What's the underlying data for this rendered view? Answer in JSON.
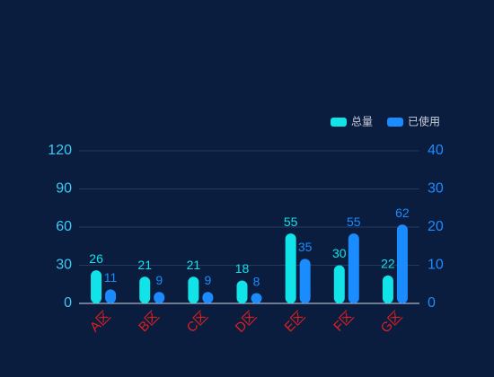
{
  "chart_data": {
    "type": "bar",
    "categories": [
      "A区",
      "B区",
      "C区",
      "D区",
      "E区",
      "F区",
      "G区"
    ],
    "series": [
      {
        "name": "总量",
        "color": "#11e3e8",
        "values": [
          26,
          21,
          21,
          18,
          55,
          30,
          22
        ]
      },
      {
        "name": "已使用",
        "color": "#1a8cff",
        "values": [
          11,
          9,
          9,
          8,
          35,
          55,
          62
        ]
      }
    ],
    "ylim": [
      0,
      120
    ],
    "yticks": [
      0,
      30,
      60,
      90,
      120
    ],
    "y2lim": [
      0,
      40
    ],
    "y2ticks": [
      0,
      10,
      20,
      30,
      40
    ],
    "grid": true,
    "legend": "top-right"
  }
}
